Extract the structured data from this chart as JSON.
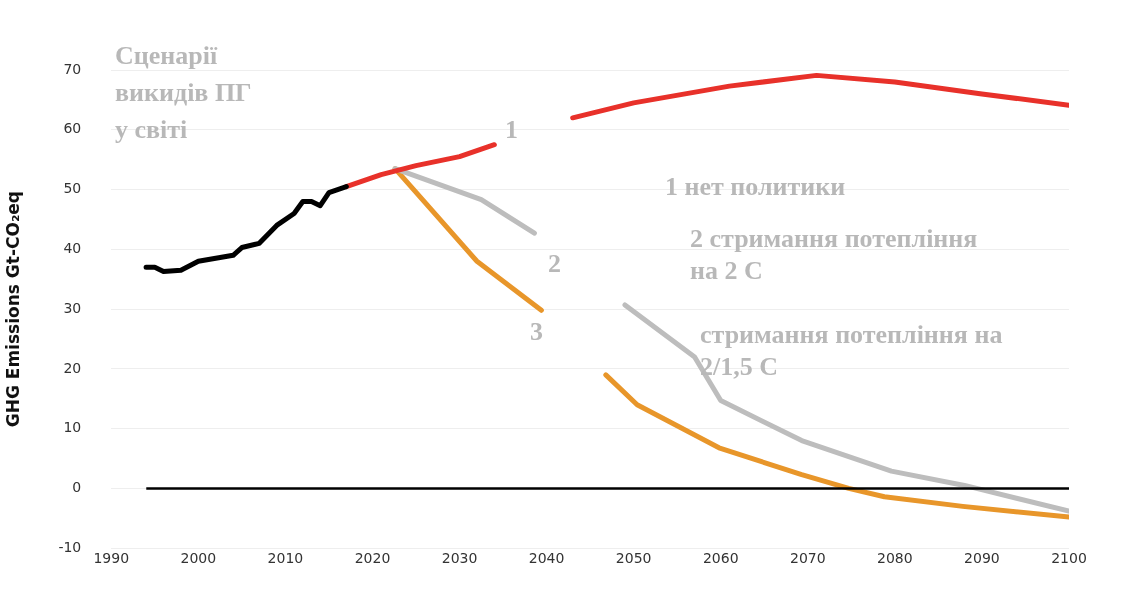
{
  "chart_data": {
    "type": "line",
    "title": "Сценарії викидів ПГ у світі",
    "ylabel": "GHG Emissions Gt-CO₂eq",
    "xlim": [
      1990,
      2100
    ],
    "xticks": [
      1990,
      2000,
      2010,
      2020,
      2030,
      2040,
      2050,
      2060,
      2070,
      2080,
      2090,
      2100
    ],
    "ylim": [
      -10,
      70
    ],
    "yticks": [
      -10,
      0,
      10,
      20,
      30,
      40,
      50,
      60,
      70
    ],
    "grid": "y",
    "legend": false,
    "marker": "none",
    "line_style": "solid",
    "ref_lines": [
      {
        "axis": "y",
        "value": 0,
        "color": "#000000"
      }
    ],
    "series": [
      {
        "color": "#000000",
        "x": [
          1994,
          1995,
          1996,
          1998,
          2000,
          2002,
          2004,
          2005,
          2007,
          2009,
          2011,
          2012,
          2013,
          2014,
          2015,
          2017
        ],
        "values": [
          37,
          37,
          36.3,
          36.5,
          38,
          38.5,
          39,
          40.3,
          41,
          44,
          46,
          48,
          48,
          47.3,
          49.5,
          50.5
        ]
      },
      {
        "color": "#e8312a",
        "x": [
          2017,
          2021,
          2025,
          2030,
          2034,
          2038,
          2043,
          2050,
          2061,
          2071,
          2080,
          2090,
          2100
        ],
        "values": [
          50.5,
          52.5,
          54,
          55.5,
          57.5,
          null,
          62,
          64.5,
          67.3,
          69.1,
          68,
          66,
          64.1
        ]
      },
      {
        "color": "#bdbdbd",
        "x": [
          2022.6,
          2032.5,
          2038.6,
          2044,
          2049,
          2057,
          2060,
          2069.3,
          2079.6,
          2088,
          2100
        ],
        "values": [
          53.5,
          48.3,
          42.7,
          null,
          30.7,
          22,
          14.7,
          8,
          2.9,
          0.5,
          -3.8
        ]
      },
      {
        "color": "#e8962a",
        "x": [
          2022.6,
          2032,
          2039.4,
          2043,
          2046.8,
          2050.4,
          2059.8,
          2069.3,
          2074.7,
          2078.8,
          2087.8,
          2100
        ],
        "values": [
          53.5,
          38,
          29.8,
          null,
          19,
          14,
          6.8,
          2.3,
          0,
          -1.4,
          -3,
          -4.8
        ]
      }
    ],
    "annotations": [
      "1",
      "2",
      "3",
      "1 нет политики",
      "2 стримання потепління на 2 С",
      "стримання потепління на 2/1,5 С"
    ]
  }
}
